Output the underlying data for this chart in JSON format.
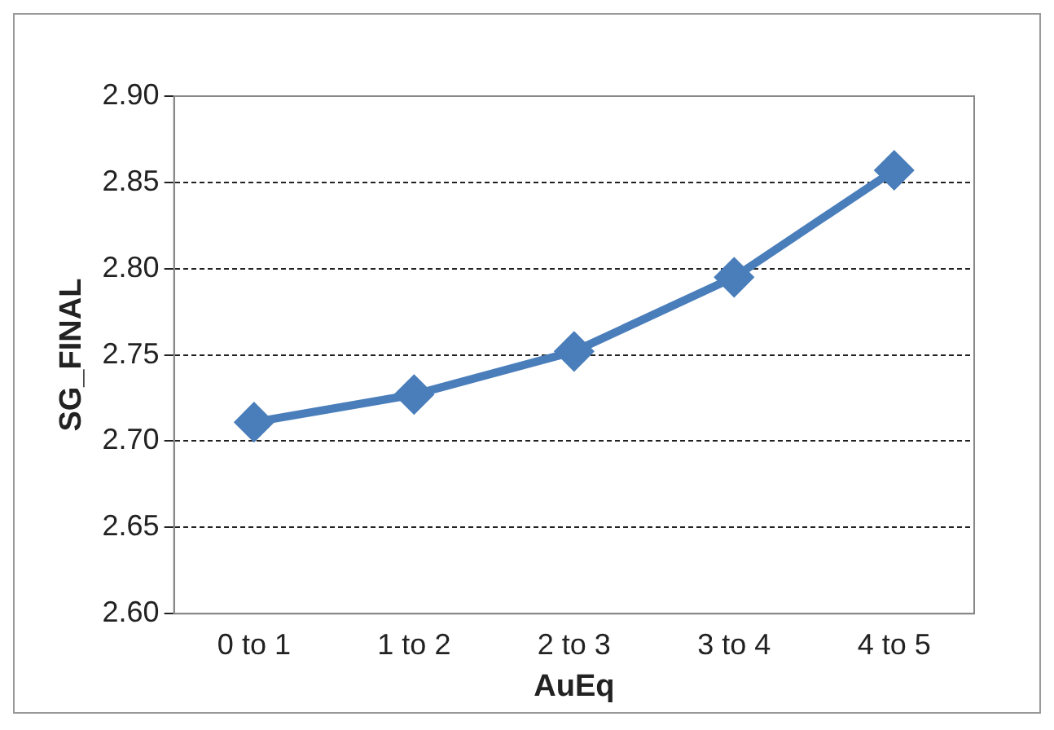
{
  "chart_data": {
    "type": "line",
    "xlabel": "AuEq",
    "ylabel": "SG_FINAL",
    "categories": [
      "0 to 1",
      "1 to 2",
      "2 to 3",
      "3 to 4",
      "4 to 5"
    ],
    "series": [
      {
        "color": "#4a7ebb",
        "values": [
          2.711,
          2.727,
          2.752,
          2.795,
          2.857
        ]
      }
    ],
    "ylim": [
      2.6,
      2.9
    ],
    "yticks": [
      {
        "value": 2.6,
        "label": "2.60"
      },
      {
        "value": 2.65,
        "label": "2.65"
      },
      {
        "value": 2.7,
        "label": "2.70"
      },
      {
        "value": 2.75,
        "label": "2.75"
      },
      {
        "value": 2.8,
        "label": "2.80"
      },
      {
        "value": 2.85,
        "label": "2.85"
      },
      {
        "value": 2.9,
        "label": "2.90"
      }
    ],
    "grid": "y",
    "legend": false,
    "marker": "diamond",
    "line_style": "solid"
  }
}
